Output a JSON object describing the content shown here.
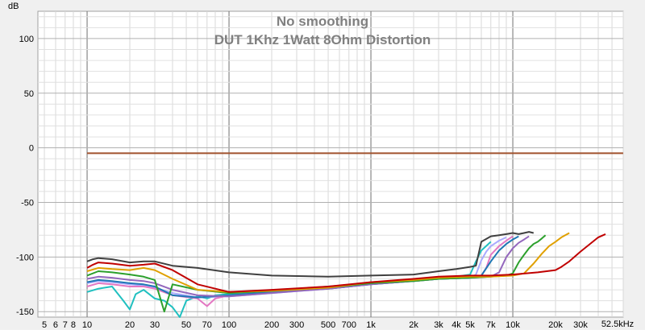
{
  "chart_data": {
    "type": "line",
    "title": "No smoothing",
    "subtitle": "DUT 1Khz 1Watt 8Ohm Distortion",
    "xlabel": "",
    "ylabel": "dB",
    "x_unit_label": "52.5kHz",
    "x_scale": "log",
    "xlim": [
      4.5,
      60000
    ],
    "ylim": [
      -155,
      125
    ],
    "grid": true,
    "x_ticks": [
      {
        "value": 5,
        "label": "5",
        "major": false
      },
      {
        "value": 6,
        "label": "6",
        "major": false
      },
      {
        "value": 7,
        "label": "7",
        "major": false
      },
      {
        "value": 8,
        "label": "8",
        "major": false
      },
      {
        "value": 10,
        "label": "10",
        "major": true
      },
      {
        "value": 20,
        "label": "20",
        "major": false
      },
      {
        "value": 30,
        "label": "30",
        "major": false
      },
      {
        "value": 50,
        "label": "50",
        "major": false
      },
      {
        "value": 70,
        "label": "70",
        "major": false
      },
      {
        "value": 100,
        "label": "100",
        "major": true
      },
      {
        "value": 200,
        "label": "200",
        "major": false
      },
      {
        "value": 300,
        "label": "300",
        "major": false
      },
      {
        "value": 500,
        "label": "500",
        "major": false
      },
      {
        "value": 700,
        "label": "700",
        "major": false
      },
      {
        "value": 1000,
        "label": "1k",
        "major": true
      },
      {
        "value": 2000,
        "label": "2k",
        "major": false
      },
      {
        "value": 3000,
        "label": "3k",
        "major": false
      },
      {
        "value": 4000,
        "label": "4k",
        "major": false
      },
      {
        "value": 5000,
        "label": "5k",
        "major": false
      },
      {
        "value": 7000,
        "label": "7k",
        "major": false
      },
      {
        "value": 10000,
        "label": "10k",
        "major": true
      },
      {
        "value": 20000,
        "label": "20k",
        "major": false
      },
      {
        "value": 30000,
        "label": "30k",
        "major": false
      }
    ],
    "y_ticks": [
      100,
      50,
      0,
      -50,
      -100,
      -150
    ],
    "fundamental": {
      "color": "#a0522d",
      "x": [
        10,
        60000
      ],
      "y": [
        -5,
        -5
      ]
    },
    "series": [
      {
        "color": "#404040",
        "x": [
          10,
          11,
          12,
          15,
          20,
          25,
          30,
          40,
          60,
          100,
          200,
          500,
          1000,
          2000,
          3000,
          4000,
          5000,
          5500,
          6000,
          7000,
          8000,
          9000,
          10000,
          11000,
          12000,
          13000,
          14000
        ],
        "y": [
          -104,
          -102,
          -101,
          -102,
          -105,
          -104,
          -104,
          -108,
          -110,
          -114,
          -117,
          -118,
          -117,
          -116,
          -113,
          -111,
          -109,
          -108,
          -86,
          -81,
          -80,
          -79,
          -78,
          -79,
          -78,
          -77,
          -78
        ]
      },
      {
        "color": "#c00000",
        "x": [
          10,
          11,
          12,
          15,
          20,
          25,
          30,
          40,
          60,
          100,
          200,
          500,
          1000,
          2000,
          3000,
          5000,
          7000,
          10000,
          15000,
          20000,
          22000,
          25000,
          30000,
          35000,
          40000,
          45000
        ],
        "y": [
          -110,
          -107,
          -105,
          -106,
          -108,
          -107,
          -106,
          -112,
          -125,
          -132,
          -130,
          -127,
          -123,
          -120,
          -118,
          -117,
          -117,
          -116,
          -114,
          -112,
          -109,
          -104,
          -95,
          -88,
          -82,
          -79
        ]
      },
      {
        "color": "#e0a000",
        "x": [
          10,
          12,
          15,
          20,
          25,
          30,
          40,
          60,
          100,
          200,
          500,
          1000,
          2000,
          3000,
          5000,
          7000,
          10000,
          12000,
          14000,
          16000,
          18000,
          20000,
          22000,
          25000
        ],
        "y": [
          -113,
          -110,
          -111,
          -112,
          -110,
          -112,
          -120,
          -130,
          -132,
          -131,
          -128,
          -123,
          -121,
          -119,
          -118,
          -118,
          -117,
          -115,
          -106,
          -97,
          -90,
          -86,
          -82,
          -78
        ]
      },
      {
        "color": "#2ca02c",
        "x": [
          10,
          12,
          15,
          20,
          25,
          30,
          35,
          40,
          60,
          100,
          200,
          500,
          1000,
          2000,
          3000,
          5000,
          7000,
          9000,
          10000,
          11000,
          12000,
          13000,
          14000,
          15000,
          16000,
          17000
        ],
        "y": [
          -117,
          -113,
          -114,
          -116,
          -118,
          -121,
          -150,
          -125,
          -130,
          -133,
          -131,
          -128,
          -124,
          -122,
          -120,
          -119,
          -118,
          -117,
          -115,
          -105,
          -98,
          -92,
          -88,
          -86,
          -83,
          -80
        ]
      },
      {
        "color": "#9467bd",
        "x": [
          10,
          12,
          15,
          20,
          25,
          30,
          40,
          60,
          100,
          200,
          500,
          1000,
          2000,
          3000,
          5000,
          7000,
          8000,
          9000,
          10000,
          11000,
          12000,
          13000
        ],
        "y": [
          -120,
          -118,
          -119,
          -121,
          -122,
          -124,
          -130,
          -135,
          -136,
          -133,
          -129,
          -125,
          -122,
          -120,
          -119,
          -118,
          -114,
          -100,
          -92,
          -87,
          -84,
          -81
        ]
      },
      {
        "color": "#1f77b4",
        "x": [
          10,
          12,
          15,
          20,
          25,
          30,
          40,
          60,
          100,
          200,
          500,
          1000,
          2000,
          3000,
          5000,
          6000,
          7000,
          8000,
          9000,
          10000,
          11000
        ],
        "y": [
          -123,
          -121,
          -122,
          -124,
          -125,
          -127,
          -135,
          -137,
          -135,
          -132,
          -129,
          -125,
          -122,
          -120,
          -119,
          -117,
          -104,
          -94,
          -88,
          -84,
          -81
        ]
      },
      {
        "color": "#e377c2",
        "x": [
          10,
          12,
          15,
          20,
          25,
          30,
          40,
          60,
          70,
          80,
          100,
          200,
          500,
          1000,
          2000,
          3000,
          5000,
          6000,
          6500,
          7000,
          8000,
          9000,
          10000
        ],
        "y": [
          -127,
          -124,
          -125,
          -127,
          -127,
          -129,
          -135,
          -138,
          -145,
          -138,
          -135,
          -132,
          -128,
          -124,
          -121,
          -119,
          -118,
          -117,
          -110,
          -98,
          -90,
          -85,
          -81
        ]
      },
      {
        "color": "#aaaaff",
        "x": [
          10,
          12,
          15,
          20,
          25,
          30,
          40,
          60,
          100,
          200,
          500,
          1000,
          2000,
          3000,
          5000,
          5500,
          6000,
          6500,
          7000,
          8000,
          9000
        ],
        "y": [
          -124,
          -122,
          -123,
          -125,
          -126,
          -128,
          -133,
          -137,
          -136,
          -133,
          -129,
          -125,
          -122,
          -120,
          -119,
          -116,
          -103,
          -95,
          -90,
          -85,
          -82
        ]
      },
      {
        "color": "#20c0c0",
        "x": [
          10,
          12,
          15,
          18,
          20,
          22,
          25,
          30,
          35,
          40,
          45,
          50,
          60,
          70,
          80,
          100,
          200,
          500,
          1000,
          2000,
          3000,
          4000,
          5000,
          5500,
          6000,
          7000
        ],
        "y": [
          -132,
          -129,
          -127,
          -140,
          -148,
          -134,
          -130,
          -138,
          -140,
          -146,
          -155,
          -140,
          -136,
          -138,
          -135,
          -134,
          -131,
          -127,
          -124,
          -121,
          -119,
          -118,
          -116,
          -104,
          -94,
          -86
        ]
      }
    ]
  }
}
